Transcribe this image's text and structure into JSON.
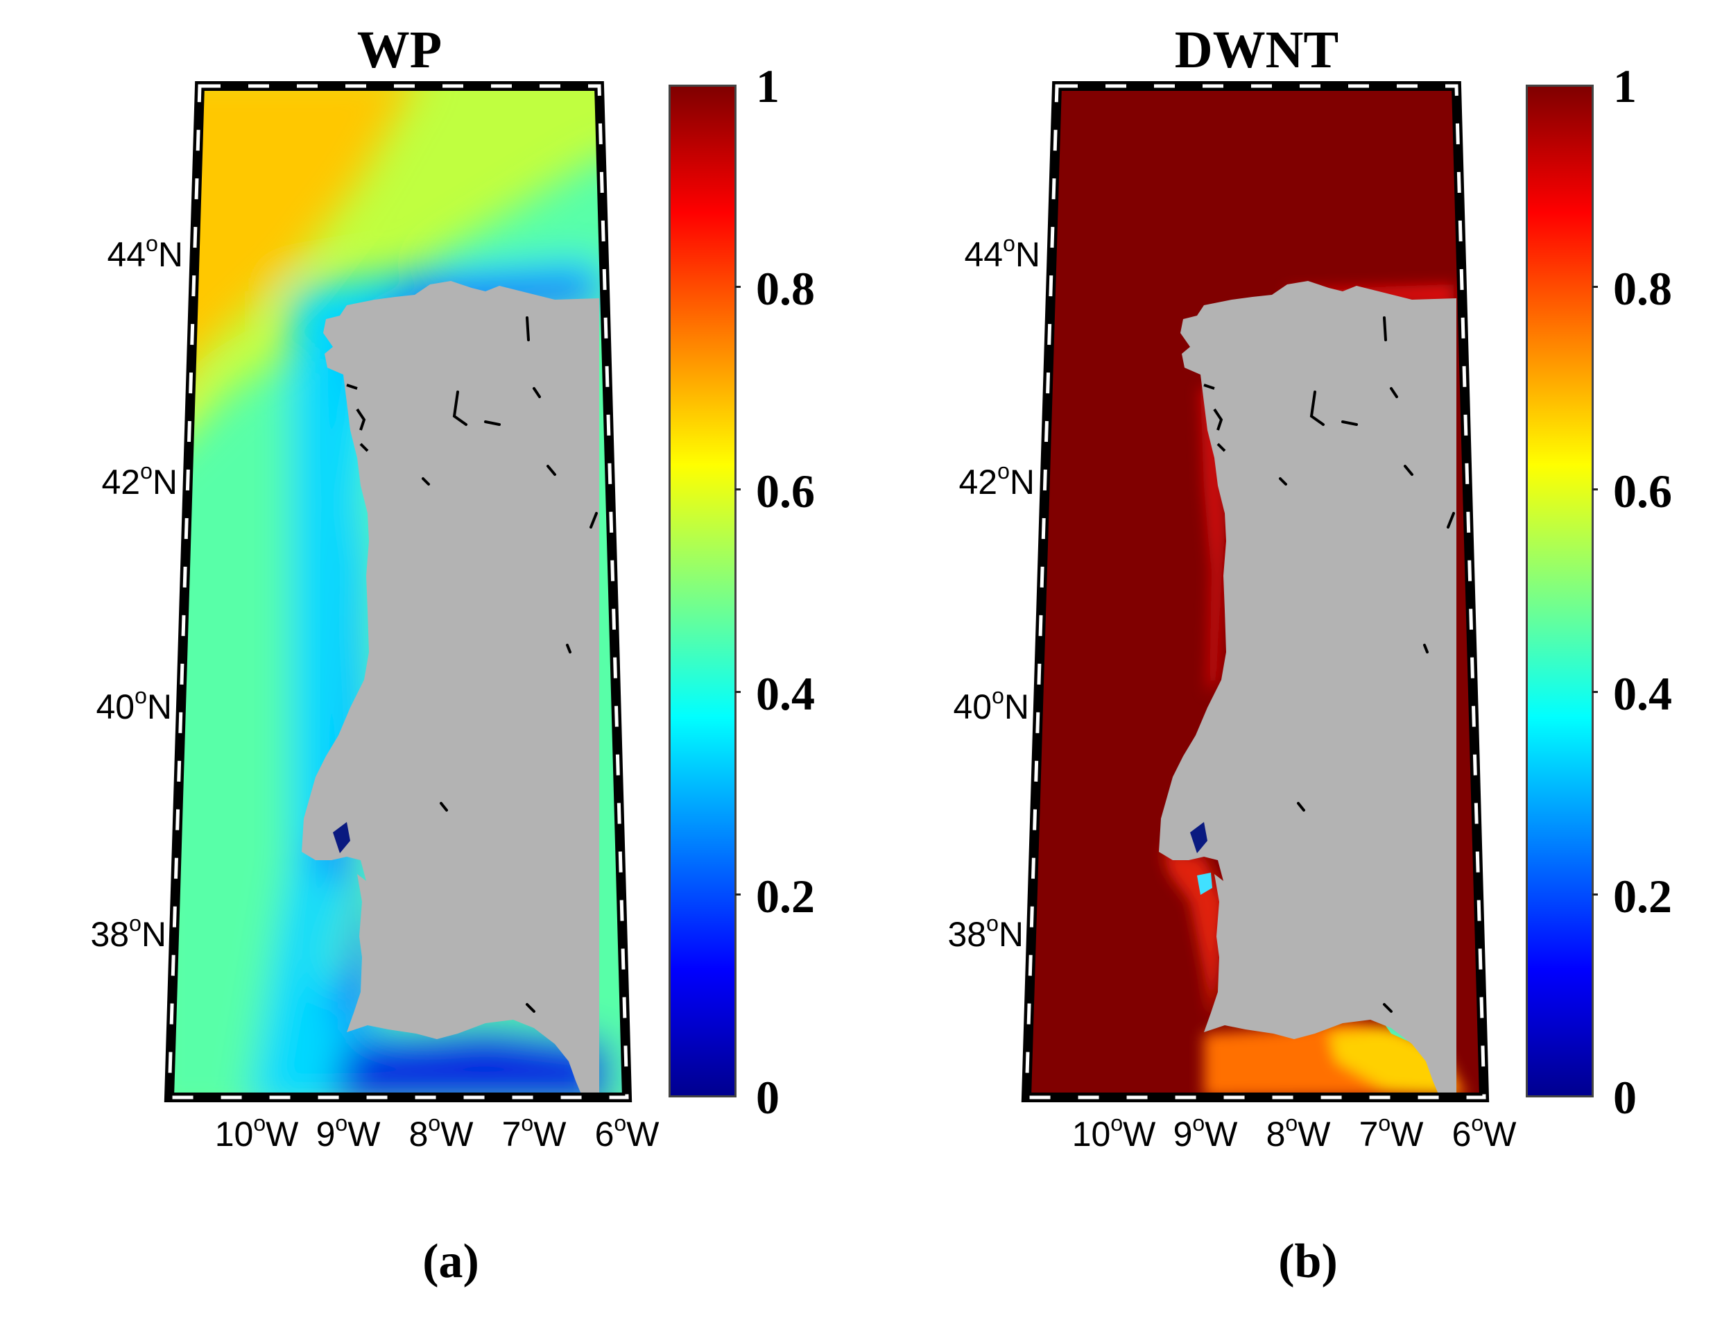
{
  "panels": [
    {
      "id": "a",
      "title": "WP",
      "caption": "(a)",
      "variable_color_note": "offshore orange-yellow to green, coastal cyan to blue",
      "colors": {
        "far_offshore": "#ffc800",
        "offshore": "#c0ff40",
        "midshore": "#58ffa8",
        "nearshore": "#00d8ff",
        "coastal": "#0040ff",
        "south_coast": "#0020e0"
      }
    },
    {
      "id": "b",
      "title": "DWNT",
      "caption": "(b)",
      "colors": {
        "sea": "#800000",
        "coastal_red": "#e01010",
        "south_coast_orange": "#ff7000",
        "south_coast_yellow": "#ffd000",
        "south_coast_cyan": "#40ffd0"
      }
    }
  ],
  "map": {
    "land_color": "#b3b3b3",
    "lat_labels": [
      {
        "deg": "44",
        "hem": "N"
      },
      {
        "deg": "42",
        "hem": "N"
      },
      {
        "deg": "40",
        "hem": "N"
      },
      {
        "deg": "38",
        "hem": "N"
      }
    ],
    "lon_labels": [
      {
        "deg": "10",
        "hem": "W"
      },
      {
        "deg": "9",
        "hem": "W"
      },
      {
        "deg": "8",
        "hem": "W"
      },
      {
        "deg": "7",
        "hem": "W"
      },
      {
        "deg": "6",
        "hem": "W"
      }
    ],
    "deg_symbol": "o"
  },
  "colorbar": {
    "min": 0,
    "max": 1,
    "labels": [
      "0",
      "0.2",
      "0.4",
      "0.6",
      "0.8",
      "1"
    ],
    "colormap": "jet"
  }
}
